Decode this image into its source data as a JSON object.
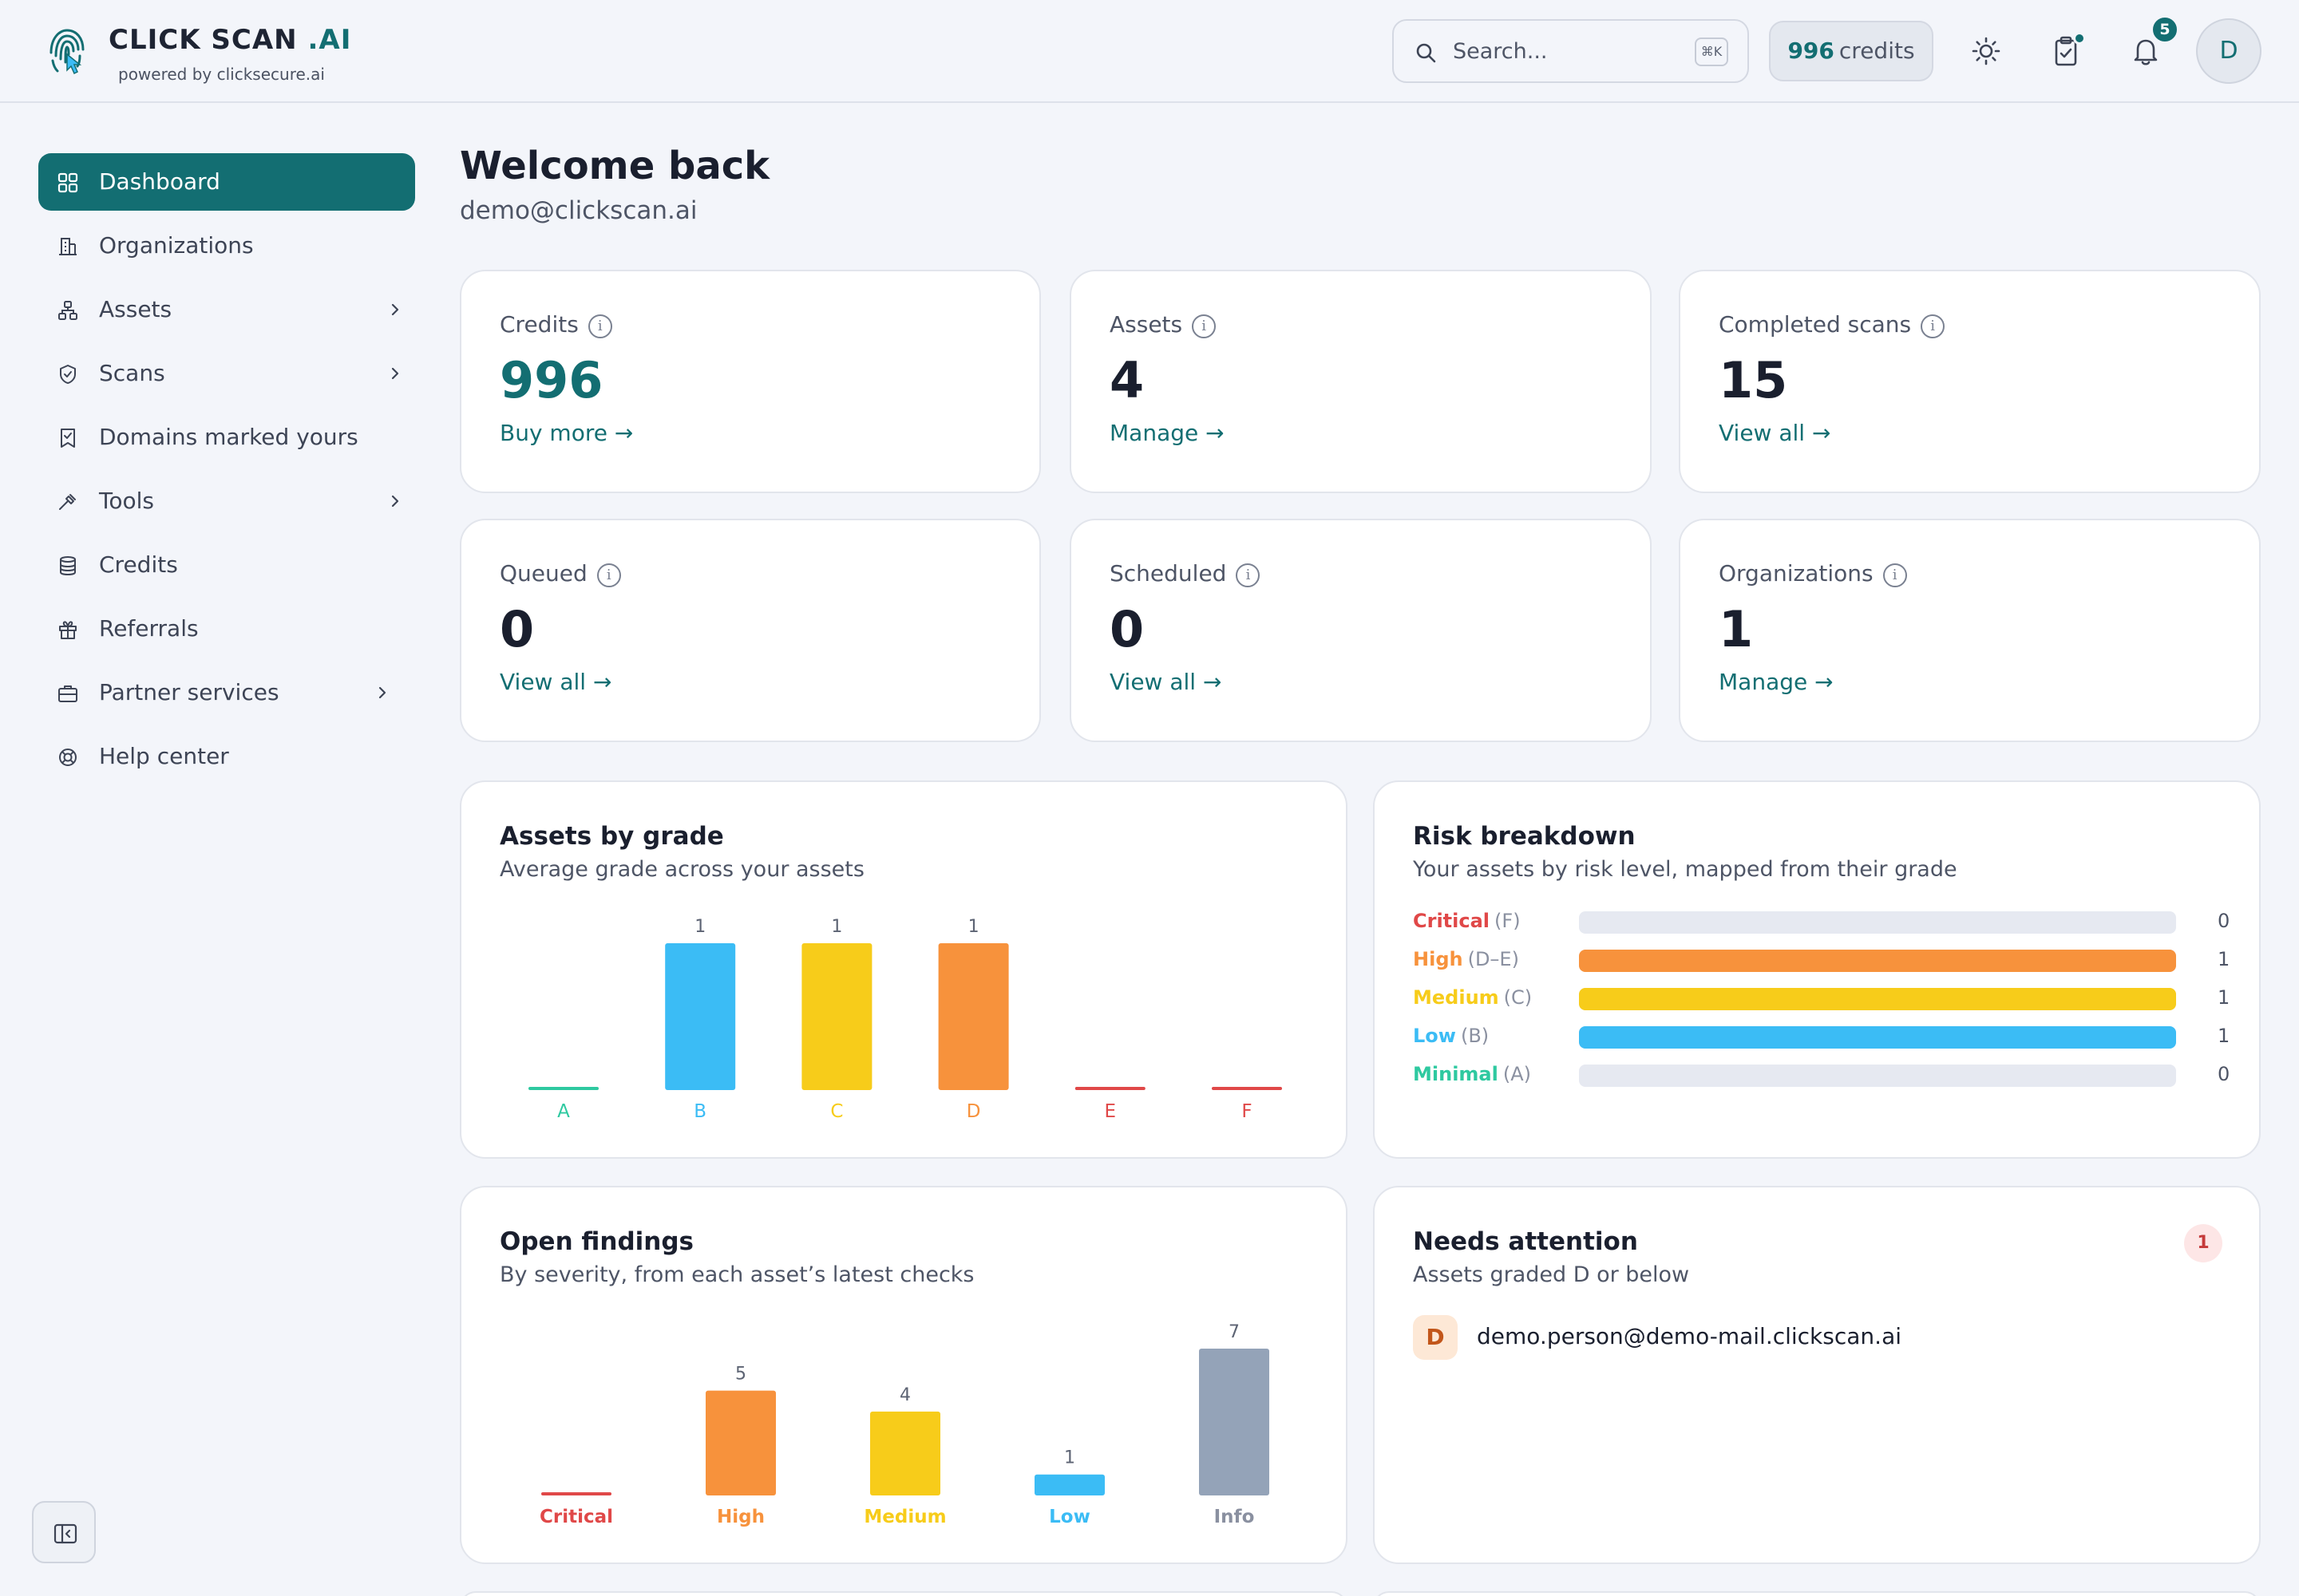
{
  "header": {
    "brand": {
      "title": "CLICK SCAN",
      "title_suffix": ".AI",
      "subtitle": "powered by clicksecure.ai"
    },
    "search": {
      "placeholder": "Search...",
      "shortcut": "⌘K"
    },
    "credits": {
      "value": "996",
      "label": "credits"
    },
    "notifications_count": "5",
    "avatar_initial": "D"
  },
  "sidebar": {
    "items": [
      {
        "label": "Dashboard",
        "icon": "dashboard-grid-icon",
        "active": true
      },
      {
        "label": "Organizations",
        "icon": "building-icon"
      },
      {
        "label": "Assets",
        "icon": "sitemap-icon",
        "has_children": true
      },
      {
        "label": "Scans",
        "icon": "shield-icon",
        "has_children": true
      },
      {
        "label": "Domains marked yours",
        "icon": "bookmark-check-icon"
      },
      {
        "label": "Tools",
        "icon": "hammer-icon",
        "has_children": true
      },
      {
        "label": "Credits",
        "icon": "database-icon"
      },
      {
        "label": "Referrals",
        "icon": "gift-icon"
      },
      {
        "label": "Partner services",
        "icon": "briefcase-icon",
        "has_children": true
      },
      {
        "label": "Help center",
        "icon": "lifebuoy-icon"
      }
    ]
  },
  "main": {
    "welcome": "Welcome back",
    "email": "demo@clickscan.ai",
    "stats": [
      {
        "label": "Credits",
        "value": "996",
        "link": "Buy more →",
        "accent": "#136e72"
      },
      {
        "label": "Assets",
        "value": "4",
        "link": "Manage →"
      },
      {
        "label": "Completed scans",
        "value": "15",
        "link": "View all →"
      },
      {
        "label": "Queued",
        "value": "0",
        "link": "View all →"
      },
      {
        "label": "Scheduled",
        "value": "0",
        "link": "View all →"
      },
      {
        "label": "Organizations",
        "value": "1",
        "link": "Manage →"
      }
    ],
    "assets_by_grade": {
      "title": "Assets by grade",
      "subtitle": "Average grade across your assets"
    },
    "risk_breakdown": {
      "title": "Risk breakdown",
      "subtitle": "Your assets by risk level, mapped from their grade",
      "rows": [
        {
          "level": "Critical",
          "grades": "(F)",
          "value": 0,
          "color": "#e04848"
        },
        {
          "level": "High",
          "grades": "(D–E)",
          "value": 1,
          "color": "#f7923c"
        },
        {
          "level": "Medium",
          "grades": "(C)",
          "value": 1,
          "color": "#f7cc1a"
        },
        {
          "level": "Low",
          "grades": "(B)",
          "value": 1,
          "color": "#3bbcf5"
        },
        {
          "level": "Minimal",
          "grades": "(A)",
          "value": 0,
          "color": "#2ec9a0"
        }
      ]
    },
    "open_findings": {
      "title": "Open findings",
      "subtitle": "By severity, from each asset’s latest checks"
    },
    "needs_attention": {
      "title": "Needs attention",
      "subtitle": "Assets graded D or below",
      "count": "1",
      "items": [
        {
          "grade": "D",
          "email": "demo.person@demo-mail.clickscan.ai"
        }
      ]
    }
  },
  "chart_data": [
    {
      "type": "bar",
      "categories": [
        "A",
        "B",
        "C",
        "D",
        "E",
        "F"
      ],
      "values": [
        0,
        1,
        1,
        1,
        0,
        0
      ],
      "colors": [
        "#2ec9a0",
        "#3bbcf5",
        "#f7cc1a",
        "#f7923c",
        "#e04848",
        "#e04848"
      ],
      "title": "Assets by grade",
      "subtitle": "Average grade across your assets",
      "ylim": [
        0,
        1
      ]
    },
    {
      "type": "bar",
      "categories": [
        "Critical",
        "High",
        "Medium",
        "Low",
        "Info"
      ],
      "values": [
        0,
        5,
        4,
        1,
        7
      ],
      "colors": [
        "#e04848",
        "#f7923c",
        "#f7cc1a",
        "#3bbcf5",
        "#94a3b8"
      ],
      "title": "Open findings",
      "subtitle": "By severity, from each asset’s latest checks",
      "ylim": [
        0,
        7
      ]
    }
  ]
}
